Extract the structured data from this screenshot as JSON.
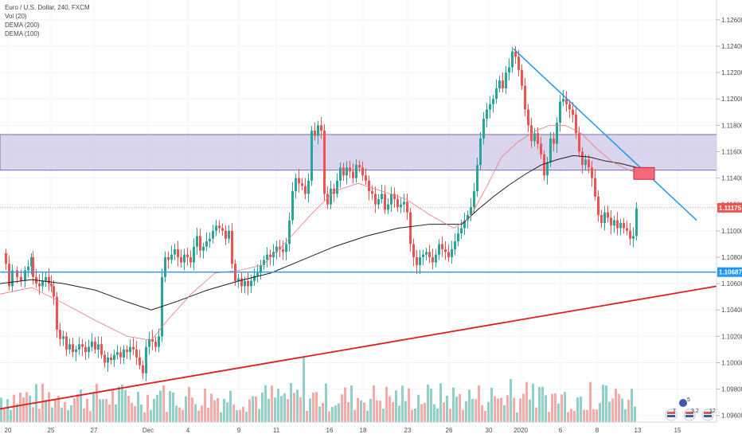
{
  "legend": {
    "symbol": "Euro / U.S. Dollar, 240, FXCM",
    "vol": "Vol (20)",
    "dema200": "DEMA (200)",
    "dema100": "DEMA (100)"
  },
  "colors": {
    "up": "#26a69a",
    "down": "#ef5350",
    "vol_up": "#8fd1c9",
    "vol_down": "#f7a9a7",
    "zone_fill": "#d4cdea",
    "zone_border": "#7c6fb0",
    "blue_line": "#2196f3",
    "red_line": "#e31b1b",
    "dema200": "#1f1f1f",
    "dema100": "#ef7777",
    "price_badge": "#ef5350",
    "level_badge": "#2196f3"
  },
  "chart_data": {
    "type": "candlestick",
    "symbol": "Euro / U.S. Dollar",
    "timeframe": "240",
    "source": "FXCM",
    "ylim": [
      1.0955,
      1.1275
    ],
    "yticks": [
      "1.12600",
      "1.12400",
      "1.12200",
      "1.12000",
      "1.11800",
      "1.11600",
      "1.11400",
      "1.11200",
      "1.11000",
      "1.10800",
      "1.10600",
      "1.10400",
      "1.10200",
      "1.10000",
      "1.09800",
      "1.09600"
    ],
    "xticks": [
      "20",
      "25",
      "27",
      "Dec",
      "4",
      "9",
      "11",
      "16",
      "18",
      "23",
      "26",
      "30",
      "2020",
      "6",
      "8",
      "13",
      "15"
    ],
    "current_price": "1.11175",
    "horizontal_level": "1.10687",
    "resistance_zone": [
      1.1146,
      1.1173
    ],
    "price_path": [
      [
        0,
        1.1083
      ],
      [
        6,
        1.1075
      ],
      [
        10,
        1.1058
      ],
      [
        14,
        1.107
      ],
      [
        20,
        1.1065
      ],
      [
        25,
        1.1062
      ],
      [
        30,
        1.107
      ],
      [
        34,
        1.1073
      ],
      [
        38,
        1.108
      ],
      [
        40,
        1.1065
      ],
      [
        44,
        1.106
      ],
      [
        48,
        1.1058
      ],
      [
        52,
        1.1062
      ],
      [
        56,
        1.1065
      ],
      [
        60,
        1.106
      ],
      [
        63,
        1.1058
      ],
      [
        66,
        1.105
      ],
      [
        70,
        1.1025
      ],
      [
        74,
        1.1018
      ],
      [
        78,
        1.102
      ],
      [
        82,
        1.101
      ],
      [
        86,
        1.1014
      ],
      [
        90,
        1.1008
      ],
      [
        94,
        1.101
      ],
      [
        98,
        1.1014
      ],
      [
        102,
        1.1012
      ],
      [
        106,
        1.1008
      ],
      [
        110,
        1.1012
      ],
      [
        114,
        1.1016
      ],
      [
        118,
        1.101
      ],
      [
        122,
        1.1014
      ],
      [
        126,
        1.1006
      ],
      [
        130,
        1.1
      ],
      [
        134,
        1.1004
      ],
      [
        138,
        1.1002
      ],
      [
        142,
        1.1006
      ],
      [
        146,
        1.1008
      ],
      [
        150,
        1.1004
      ],
      [
        154,
        1.101
      ],
      [
        158,
        1.1008
      ],
      [
        162,
        1.1012
      ],
      [
        166,
        1.101
      ],
      [
        170,
        1.1004
      ],
      [
        174,
        1.0998
      ],
      [
        178,
        1.0992
      ],
      [
        182,
        1.1012
      ],
      [
        186,
        1.1018
      ],
      [
        190,
        1.1016
      ],
      [
        194,
        1.1012
      ],
      [
        198,
        1.102
      ],
      [
        202,
        1.1065
      ],
      [
        206,
        1.108
      ],
      [
        210,
        1.1078
      ],
      [
        214,
        1.1082
      ],
      [
        218,
        1.1086
      ],
      [
        222,
        1.108
      ],
      [
        226,
        1.1076
      ],
      [
        230,
        1.1082
      ],
      [
        234,
        1.108
      ],
      [
        238,
        1.1076
      ],
      [
        242,
        1.1088
      ],
      [
        246,
        1.1096
      ],
      [
        250,
        1.1085
      ],
      [
        254,
        1.1088
      ],
      [
        258,
        1.1092
      ],
      [
        262,
        1.1094
      ],
      [
        266,
        1.11
      ],
      [
        270,
        1.1104
      ],
      [
        274,
        1.1102
      ],
      [
        278,
        1.11
      ],
      [
        282,
        1.1094
      ],
      [
        286,
        1.11
      ],
      [
        290,
        1.1075
      ],
      [
        294,
        1.1062
      ],
      [
        298,
        1.1064
      ],
      [
        302,
        1.1058
      ],
      [
        306,
        1.1062
      ],
      [
        310,
        1.1058
      ],
      [
        314,
        1.1062
      ],
      [
        318,
        1.1066
      ],
      [
        322,
        1.1068
      ],
      [
        326,
        1.1074
      ],
      [
        330,
        1.1078
      ],
      [
        334,
        1.1082
      ],
      [
        338,
        1.108
      ],
      [
        342,
        1.1084
      ],
      [
        346,
        1.1088
      ],
      [
        350,
        1.1086
      ],
      [
        354,
        1.1084
      ],
      [
        358,
        1.109
      ],
      [
        362,
        1.1108
      ],
      [
        366,
        1.113
      ],
      [
        370,
        1.114
      ],
      [
        374,
        1.1136
      ],
      [
        378,
        1.1134
      ],
      [
        382,
        1.1128
      ],
      [
        386,
        1.1138
      ],
      [
        390,
        1.1176
      ],
      [
        394,
        1.1172
      ],
      [
        398,
        1.118
      ],
      [
        402,
        1.1176
      ],
      [
        406,
        1.1128
      ],
      [
        410,
        1.112
      ],
      [
        414,
        1.1132
      ],
      [
        418,
        1.1128
      ],
      [
        422,
        1.1138
      ],
      [
        426,
        1.1148
      ],
      [
        430,
        1.1142
      ],
      [
        434,
        1.1148
      ],
      [
        438,
        1.1145
      ],
      [
        442,
        1.114
      ],
      [
        446,
        1.115
      ],
      [
        450,
        1.1148
      ],
      [
        454,
        1.1142
      ],
      [
        458,
        1.1138
      ],
      [
        462,
        1.113
      ],
      [
        466,
        1.1128
      ],
      [
        470,
        1.112
      ],
      [
        474,
        1.1124
      ],
      [
        478,
        1.1128
      ],
      [
        482,
        1.1116
      ],
      [
        486,
        1.112
      ],
      [
        490,
        1.1128
      ],
      [
        494,
        1.1124
      ],
      [
        498,
        1.1118
      ],
      [
        502,
        1.112
      ],
      [
        506,
        1.1122
      ],
      [
        510,
        1.1114
      ],
      [
        514,
        1.109
      ],
      [
        518,
        1.108
      ],
      [
        522,
        1.1074
      ],
      [
        526,
        1.108
      ],
      [
        530,
        1.1082
      ],
      [
        534,
        1.1084
      ],
      [
        538,
        1.108
      ],
      [
        542,
        1.1076
      ],
      [
        546,
        1.1082
      ],
      [
        550,
        1.109
      ],
      [
        554,
        1.1086
      ],
      [
        558,
        1.1084
      ],
      [
        562,
        1.108
      ],
      [
        566,
        1.1086
      ],
      [
        570,
        1.1092
      ],
      [
        574,
        1.1098
      ],
      [
        578,
        1.1102
      ],
      [
        582,
        1.1108
      ],
      [
        586,
        1.1112
      ],
      [
        590,
        1.1118
      ],
      [
        594,
        1.113
      ],
      [
        598,
        1.115
      ],
      [
        602,
        1.117
      ],
      [
        606,
        1.1185
      ],
      [
        610,
        1.1192
      ],
      [
        614,
        1.1196
      ],
      [
        618,
        1.12
      ],
      [
        622,
        1.1208
      ],
      [
        626,
        1.1214
      ],
      [
        630,
        1.1208
      ],
      [
        634,
        1.122
      ],
      [
        638,
        1.1224
      ],
      [
        642,
        1.1236
      ],
      [
        646,
        1.1232
      ],
      [
        650,
        1.1222
      ],
      [
        654,
        1.121
      ],
      [
        658,
        1.1192
      ],
      [
        662,
        1.118
      ],
      [
        666,
        1.1168
      ],
      [
        670,
        1.1174
      ],
      [
        674,
        1.1166
      ],
      [
        678,
        1.1158
      ],
      [
        682,
        1.1142
      ],
      [
        686,
        1.1152
      ],
      [
        690,
        1.117
      ],
      [
        694,
        1.1166
      ],
      [
        698,
        1.1182
      ],
      [
        702,
        1.1198
      ],
      [
        706,
        1.12
      ],
      [
        710,
        1.1196
      ],
      [
        714,
        1.1192
      ],
      [
        718,
        1.1188
      ],
      [
        722,
        1.1174
      ],
      [
        726,
        1.116
      ],
      [
        730,
        1.115
      ],
      [
        734,
        1.1154
      ],
      [
        738,
        1.1148
      ],
      [
        742,
        1.114
      ],
      [
        746,
        1.1126
      ],
      [
        750,
        1.1112
      ],
      [
        754,
        1.1106
      ],
      [
        758,
        1.1114
      ],
      [
        762,
        1.111
      ],
      [
        766,
        1.1104
      ],
      [
        770,
        1.1108
      ],
      [
        774,
        1.1102
      ],
      [
        778,
        1.1106
      ],
      [
        782,
        1.1102
      ],
      [
        786,
        1.11
      ],
      [
        790,
        1.1094
      ],
      [
        794,
        1.1096
      ],
      [
        798,
        1.1117
      ]
    ],
    "dema200_path": [
      [
        0,
        1.106
      ],
      [
        40,
        1.1063
      ],
      [
        80,
        1.106
      ],
      [
        120,
        1.1055
      ],
      [
        160,
        1.1046
      ],
      [
        190,
        1.104
      ],
      [
        220,
        1.1046
      ],
      [
        260,
        1.1055
      ],
      [
        300,
        1.1062
      ],
      [
        340,
        1.1068
      ],
      [
        380,
        1.1078
      ],
      [
        420,
        1.1088
      ],
      [
        460,
        1.1096
      ],
      [
        500,
        1.1102
      ],
      [
        540,
        1.1105
      ],
      [
        580,
        1.1105
      ],
      [
        600,
        1.1116
      ],
      [
        620,
        1.1126
      ],
      [
        640,
        1.1135
      ],
      [
        660,
        1.1143
      ],
      [
        680,
        1.115
      ],
      [
        700,
        1.1154
      ],
      [
        720,
        1.1157
      ],
      [
        740,
        1.1156
      ],
      [
        760,
        1.1153
      ],
      [
        780,
        1.1151
      ],
      [
        800,
        1.1148
      ]
    ],
    "dema100_path": [
      [
        0,
        1.1052
      ],
      [
        40,
        1.1057
      ],
      [
        80,
        1.1045
      ],
      [
        120,
        1.1032
      ],
      [
        160,
        1.102
      ],
      [
        190,
        1.1017
      ],
      [
        210,
        1.1032
      ],
      [
        240,
        1.1052
      ],
      [
        270,
        1.1068
      ],
      [
        300,
        1.107
      ],
      [
        330,
        1.1074
      ],
      [
        360,
        1.1092
      ],
      [
        390,
        1.1112
      ],
      [
        420,
        1.113
      ],
      [
        450,
        1.1136
      ],
      [
        480,
        1.113
      ],
      [
        510,
        1.1124
      ],
      [
        540,
        1.1112
      ],
      [
        570,
        1.1102
      ],
      [
        590,
        1.111
      ],
      [
        610,
        1.1132
      ],
      [
        630,
        1.1156
      ],
      [
        650,
        1.1167
      ],
      [
        670,
        1.1175
      ],
      [
        690,
        1.118
      ],
      [
        710,
        1.118
      ],
      [
        730,
        1.1174
      ],
      [
        750,
        1.1162
      ],
      [
        770,
        1.1152
      ],
      [
        790,
        1.1146
      ],
      [
        800,
        1.1144
      ]
    ],
    "volume": {
      "max_label": "",
      "spikes": [
        [
          380,
          0.45
        ],
        [
          406,
          0.75
        ],
        [
          200,
          0.22
        ],
        [
          470,
          0.25
        ],
        [
          640,
          0.3
        ],
        [
          660,
          0.28
        ],
        [
          740,
          0.28
        ],
        [
          755,
          0.26
        ]
      ]
    },
    "trendlines": {
      "descending": {
        "from": [
          645,
          1.1238
        ],
        "to": [
          875,
          1.1108
        ]
      },
      "ascending": {
        "from": [
          0,
          1.0965
        ],
        "to": [
          900,
          1.1058
        ]
      }
    },
    "entry_box": [
      [
        796,
        1.1148
      ],
      [
        822,
        1.1139
      ]
    ]
  },
  "events": {
    "count_a": "7",
    "count_b": "12",
    "count_c": "3.2",
    "marker_top": "5"
  }
}
